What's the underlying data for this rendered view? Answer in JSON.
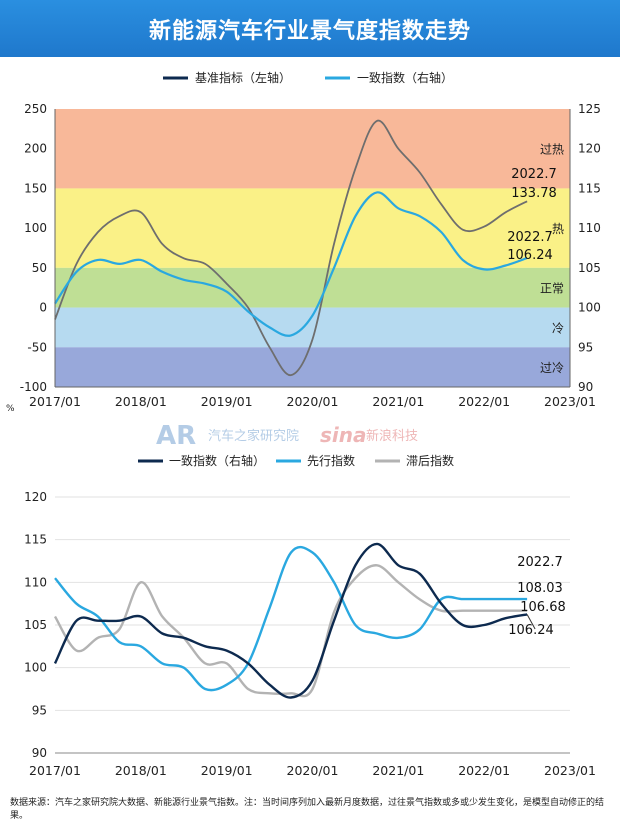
{
  "banner": {
    "title": "新能源汽车行业景气度指数走势"
  },
  "colors": {
    "navy": "#0d2a4f",
    "cyan": "#2aa8e0",
    "gray": "#b3b3b3",
    "gray_dark": "#6e6e6e",
    "zone_overheat": "#f7b08e",
    "zone_hot": "#f9ef7a",
    "zone_normal": "#b8dc8a",
    "zone_cold": "#aed6ee",
    "zone_overcold": "#8d9fd6"
  },
  "watermark": {
    "brand1": "AR",
    "brand1_text": "汽车之家研究院",
    "brand2": "sina",
    "brand2_text": "新浪科技"
  },
  "footnote": "数据来源：汽车之家研究院大数据、新能源行业景气指数。注：当时间序列加入最新月度数据，过往景气指数或多或少发生变化，是模型自动修正的结果。",
  "chart_data": [
    {
      "type": "line",
      "title": "",
      "x_labels": [
        "2017/01",
        "2018/01",
        "2019/01",
        "2020/01",
        "2021/01",
        "2022/01",
        "2023/01"
      ],
      "x_unit": "%",
      "y_left": {
        "ylim": [
          -100,
          250
        ],
        "ticks": [
          -100,
          -50,
          0,
          50,
          100,
          150,
          200,
          250
        ]
      },
      "y_right": {
        "ylim": [
          90,
          125
        ],
        "ticks": [
          90,
          95,
          100,
          105,
          110,
          115,
          120,
          125
        ]
      },
      "legend": {
        "placement": "top-center",
        "items": [
          "基准指标（左轴）",
          "一致指数（右轴）"
        ]
      },
      "zones": [
        {
          "label": "过热",
          "from": 150,
          "to": 250,
          "color": "#f7b08e"
        },
        {
          "label": "热",
          "from": 50,
          "to": 150,
          "color": "#f9ef7a"
        },
        {
          "label": "正常",
          "from": 0,
          "to": 50,
          "color": "#b8dc8a"
        },
        {
          "label": "冷",
          "from": -50,
          "to": 0,
          "color": "#aed6ee"
        },
        {
          "label": "过冷",
          "from": -100,
          "to": -50,
          "color": "#8d9fd6"
        }
      ],
      "series": [
        {
          "name": "基准指标（左轴）",
          "axis": "left",
          "color": "#6e6e6e",
          "x": [
            "2017/01",
            "2017/04",
            "2017/07",
            "2017/10",
            "2018/01",
            "2018/04",
            "2018/07",
            "2018/10",
            "2019/01",
            "2019/04",
            "2019/07",
            "2019/10",
            "2020/01",
            "2020/04",
            "2020/07",
            "2020/10",
            "2021/01",
            "2021/04",
            "2021/07",
            "2021/10",
            "2022/01",
            "2022/04",
            "2022/07"
          ],
          "values": [
            -15,
            55,
            95,
            115,
            120,
            80,
            62,
            55,
            30,
            0,
            -50,
            -85,
            -40,
            80,
            175,
            235,
            200,
            170,
            130,
            98,
            102,
            120,
            133.78
          ]
        },
        {
          "name": "一致指数（右轴）",
          "axis": "right",
          "color": "#2aa8e0",
          "x": [
            "2017/01",
            "2017/04",
            "2017/07",
            "2017/10",
            "2018/01",
            "2018/04",
            "2018/07",
            "2018/10",
            "2019/01",
            "2019/04",
            "2019/07",
            "2019/10",
            "2020/01",
            "2020/04",
            "2020/07",
            "2020/10",
            "2021/01",
            "2021/04",
            "2021/07",
            "2021/10",
            "2022/01",
            "2022/04",
            "2022/07"
          ],
          "values": [
            100.5,
            104.5,
            106.0,
            105.5,
            106.0,
            104.5,
            103.5,
            103.0,
            102.0,
            99.5,
            97.5,
            96.5,
            99.0,
            105.0,
            111.5,
            114.5,
            112.5,
            111.5,
            109.5,
            106.0,
            104.8,
            105.3,
            106.24
          ]
        }
      ],
      "annotations": [
        {
          "text": "2022.7",
          "x": "2022/07",
          "y": 133.78,
          "axis": "left"
        },
        {
          "text": "133.78",
          "x": "2022/07",
          "y": 133.78,
          "axis": "left"
        },
        {
          "text": "2022.7",
          "x": "2022/07",
          "y": 106.24,
          "axis": "right"
        },
        {
          "text": "106.24",
          "x": "2022/07",
          "y": 106.24,
          "axis": "right"
        }
      ]
    },
    {
      "type": "line",
      "title": "",
      "x_labels": [
        "2017/01",
        "2018/01",
        "2019/01",
        "2020/01",
        "2021/01",
        "2022/01",
        "2023/01"
      ],
      "ylim": [
        90,
        120
      ],
      "yticks": [
        90,
        95,
        100,
        105,
        110,
        115,
        120
      ],
      "legend": {
        "placement": "top-center",
        "items": [
          "一致指数（右轴）",
          "先行指数",
          "滞后指数"
        ]
      },
      "series": [
        {
          "name": "一致指数（右轴）",
          "color": "#0d2a4f",
          "x": [
            "2017/01",
            "2017/04",
            "2017/07",
            "2017/10",
            "2018/01",
            "2018/04",
            "2018/07",
            "2018/10",
            "2019/01",
            "2019/04",
            "2019/07",
            "2019/10",
            "2020/01",
            "2020/04",
            "2020/07",
            "2020/10",
            "2021/01",
            "2021/04",
            "2021/07",
            "2021/10",
            "2022/01",
            "2022/04",
            "2022/07"
          ],
          "values": [
            100.5,
            105.5,
            105.5,
            105.5,
            106.0,
            104.0,
            103.5,
            102.5,
            102.0,
            100.5,
            98.0,
            96.5,
            98.5,
            105.5,
            112.0,
            114.5,
            112.0,
            111.0,
            107.5,
            105.0,
            105.0,
            105.8,
            106.24
          ]
        },
        {
          "name": "先行指数",
          "color": "#2aa8e0",
          "x": [
            "2017/01",
            "2017/04",
            "2017/07",
            "2017/10",
            "2018/01",
            "2018/04",
            "2018/07",
            "2018/10",
            "2019/01",
            "2019/04",
            "2019/07",
            "2019/10",
            "2020/01",
            "2020/04",
            "2020/07",
            "2020/10",
            "2021/01",
            "2021/04",
            "2021/07",
            "2021/10",
            "2022/01",
            "2022/04",
            "2022/07"
          ],
          "values": [
            110.5,
            107.5,
            106.0,
            103.0,
            102.5,
            100.5,
            100.0,
            97.5,
            98.0,
            100.5,
            107.0,
            113.5,
            113.5,
            110.0,
            105.0,
            104.0,
            103.5,
            104.5,
            108.03,
            108.03,
            108.03,
            108.03,
            108.03
          ]
        },
        {
          "name": "滞后指数",
          "color": "#b3b3b3",
          "x": [
            "2017/01",
            "2017/04",
            "2017/07",
            "2017/10",
            "2018/01",
            "2018/04",
            "2018/07",
            "2018/10",
            "2019/01",
            "2019/04",
            "2019/07",
            "2019/10",
            "2020/01",
            "2020/04",
            "2020/07",
            "2020/10",
            "2021/01",
            "2021/04",
            "2021/07",
            "2021/10",
            "2022/01",
            "2022/04",
            "2022/07"
          ],
          "values": [
            106.0,
            102.0,
            103.5,
            104.5,
            110.0,
            106.0,
            103.5,
            100.5,
            100.5,
            97.5,
            97.0,
            97.0,
            97.5,
            106.5,
            110.5,
            112.0,
            110.0,
            108.0,
            106.68,
            106.68,
            106.68,
            106.68,
            106.68
          ]
        }
      ],
      "annotations": [
        {
          "text": "2022.7"
        },
        {
          "text": "108.03"
        },
        {
          "text": "106.68"
        },
        {
          "text": "106.24"
        }
      ]
    }
  ]
}
